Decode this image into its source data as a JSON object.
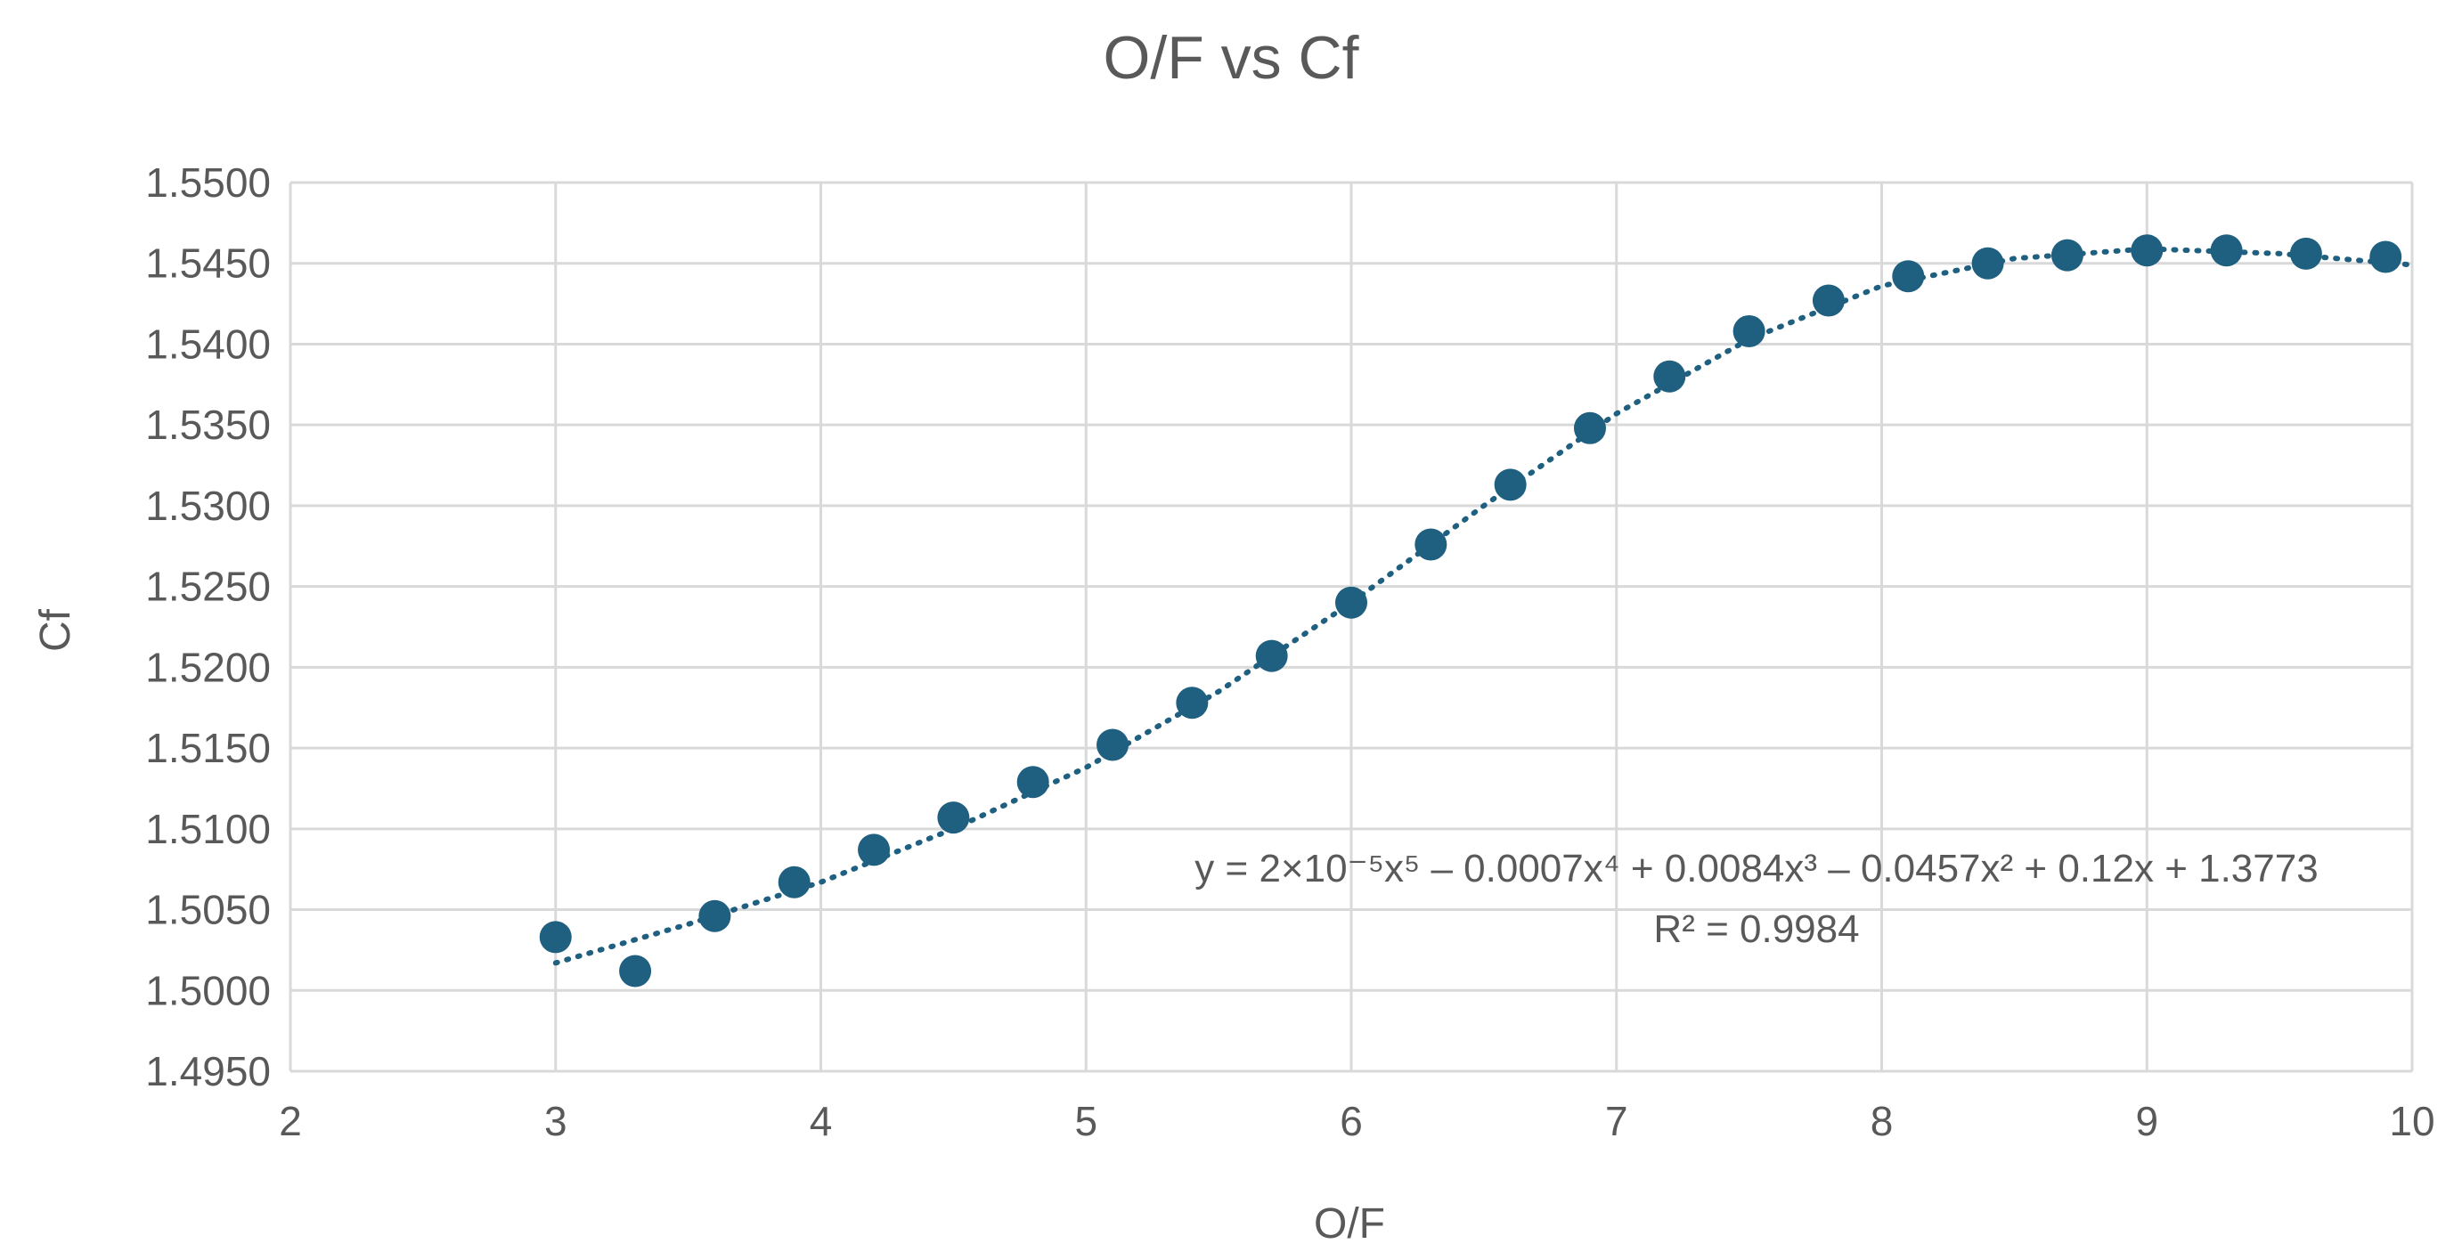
{
  "chart_data": {
    "type": "scatter",
    "title": "O/F vs Cf",
    "xlabel": "O/F",
    "ylabel": "Cf",
    "xlim": [
      2,
      10
    ],
    "ylim": [
      1.495,
      1.55
    ],
    "x_ticks": [
      "2",
      "3",
      "4",
      "5",
      "6",
      "7",
      "8",
      "9",
      "10"
    ],
    "y_ticks": [
      "1.4950",
      "1.5000",
      "1.5050",
      "1.5100",
      "1.5150",
      "1.5200",
      "1.5250",
      "1.5300",
      "1.5350",
      "1.5400",
      "1.5450",
      "1.5500"
    ],
    "grid": true,
    "series": [
      {
        "color": "#1f5f7f",
        "x": [
          3.0,
          3.3,
          3.6,
          3.9,
          4.2,
          4.5,
          4.8,
          5.1,
          5.4,
          5.7,
          6.0,
          6.3,
          6.6,
          6.9,
          7.2,
          7.5,
          7.8,
          8.1,
          8.4,
          8.7,
          9.0,
          9.3,
          9.6,
          9.9
        ],
        "y": [
          1.5033,
          1.5012,
          1.5046,
          1.5067,
          1.5087,
          1.5107,
          1.5129,
          1.5152,
          1.5178,
          1.5207,
          1.524,
          1.5276,
          1.5313,
          1.5348,
          1.538,
          1.5408,
          1.5427,
          1.5442,
          1.545,
          1.5455,
          1.5458,
          1.5458,
          1.5456,
          1.5454
        ]
      }
    ],
    "trendline": {
      "style": "dotted",
      "color": "#1f5f7f",
      "x_range": [
        3.0,
        10.0
      ],
      "x": [
        3.0,
        3.5,
        4.0,
        4.5,
        5.0,
        5.5,
        6.0,
        6.5,
        7.0,
        7.5,
        8.0,
        8.5,
        9.0,
        9.5,
        10.0
      ],
      "y": [
        1.5017,
        1.5041,
        1.5067,
        1.51,
        1.5138,
        1.5185,
        1.524,
        1.53,
        1.5357,
        1.5403,
        1.5436,
        1.5453,
        1.5459,
        1.5456,
        1.5449
      ]
    },
    "annotations": {
      "equation": "y = 2×10⁻⁵x⁵ – 0.0007x⁴ + 0.0084x³ – 0.0457x² + 0.12x + 1.3773",
      "r_squared": "R² = 0.9984"
    }
  }
}
